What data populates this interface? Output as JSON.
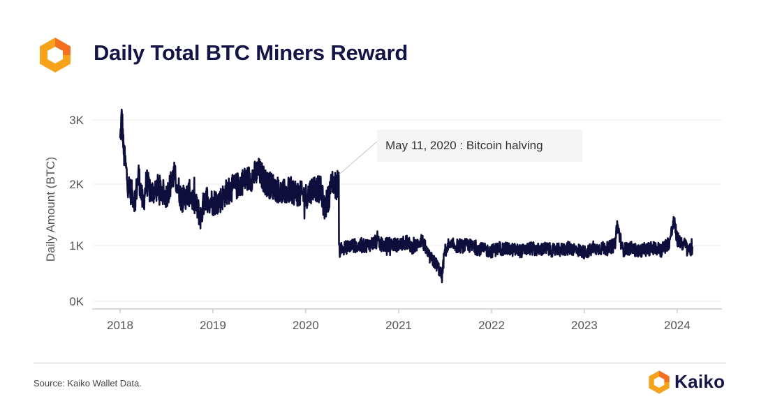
{
  "header": {
    "title": "Daily Total BTC Miners Reward",
    "logo_icon": "kaiko-logo-icon"
  },
  "colors": {
    "line": "#0e0e3c",
    "title": "#141446",
    "logo_primary": "#f7a21b",
    "logo_secondary": "#f36f21"
  },
  "chart_data": {
    "type": "line",
    "title": "Daily Total BTC Miners Reward",
    "xlabel": "",
    "ylabel": "Daily Amount (BTC)",
    "x_ticks": [
      "2018",
      "2019",
      "2020",
      "2021",
      "2022",
      "2023",
      "2024"
    ],
    "y_ticks": [
      "0K",
      "1K",
      "2K",
      "3K"
    ],
    "ylim": [
      0,
      3200
    ],
    "x_range": [
      "2018-01-01",
      "2024-03-01"
    ],
    "grid": true,
    "legend": "none",
    "series": [
      {
        "x": [
          "2018-01-01",
          "2018-01-08",
          "2018-01-15",
          "2018-01-22",
          "2018-02-01",
          "2018-02-15",
          "2018-03-01",
          "2018-03-15",
          "2018-04-01",
          "2018-04-15",
          "2018-05-01",
          "2018-06-01",
          "2018-07-01",
          "2018-08-01",
          "2018-09-01",
          "2018-10-01",
          "2018-11-01",
          "2018-11-15",
          "2018-12-01",
          "2019-01-01",
          "2019-02-01",
          "2019-03-01",
          "2019-04-01",
          "2019-05-01",
          "2019-06-01",
          "2019-07-01",
          "2019-08-01",
          "2019-09-01",
          "2019-10-01",
          "2019-11-01",
          "2019-12-01",
          "2020-01-01",
          "2020-02-01",
          "2020-03-01",
          "2020-03-15",
          "2020-04-01",
          "2020-04-15",
          "2020-05-01",
          "2020-05-10",
          "2020-05-11",
          "2020-05-13",
          "2020-05-20",
          "2020-06-01",
          "2020-07-01",
          "2020-08-01",
          "2020-09-01",
          "2020-10-01",
          "2020-11-01",
          "2020-12-01",
          "2021-01-01",
          "2021-02-01",
          "2021-03-01",
          "2021-04-01",
          "2021-04-20",
          "2021-05-01",
          "2021-06-01",
          "2021-06-20",
          "2021-07-01",
          "2021-07-15",
          "2021-08-01",
          "2021-09-01",
          "2021-10-01",
          "2021-11-01",
          "2021-12-01",
          "2022-01-01",
          "2022-02-01",
          "2022-03-01",
          "2022-04-01",
          "2022-05-01",
          "2022-06-01",
          "2022-07-01",
          "2022-08-01",
          "2022-09-01",
          "2022-10-01",
          "2022-11-01",
          "2022-12-01",
          "2023-01-01",
          "2023-02-01",
          "2023-03-01",
          "2023-04-01",
          "2023-05-01",
          "2023-05-10",
          "2023-06-01",
          "2023-07-01",
          "2023-08-01",
          "2023-09-01",
          "2023-10-01",
          "2023-11-01",
          "2023-12-01",
          "2023-12-20",
          "2024-01-01",
          "2024-02-01",
          "2024-03-01"
        ],
        "y": [
          2650,
          3100,
          2500,
          2300,
          2000,
          1850,
          1750,
          2150,
          1650,
          2050,
          1850,
          1950,
          1800,
          2150,
          1750,
          1850,
          1600,
          1450,
          1800,
          1700,
          1750,
          1900,
          1950,
          2050,
          2100,
          2200,
          2000,
          1950,
          1850,
          1900,
          1850,
          1800,
          1950,
          1900,
          1600,
          1800,
          2050,
          1950,
          2100,
          1000,
          900,
          950,
          950,
          1000,
          980,
          1000,
          1050,
          1000,
          1020,
          1000,
          1050,
          950,
          1100,
          900,
          800,
          650,
          450,
          900,
          950,
          1000,
          980,
          1000,
          950,
          920,
          900,
          950,
          930,
          920,
          900,
          950,
          920,
          940,
          910,
          920,
          950,
          930,
          880,
          920,
          950,
          940,
          1000,
          1350,
          920,
          950,
          900,
          930,
          950,
          930,
          1050,
          1400,
          1100,
          1000,
          900
        ],
        "envelope": 150
      }
    ],
    "annotations": [
      {
        "x": "2020-05-11",
        "y": 2150,
        "text": "May 11, 2020 : Bitcoin halving"
      }
    ]
  },
  "footer": {
    "source": "Source: Kaiko Wallet Data.",
    "brand": "Kaiko",
    "logo_icon": "kaiko-logo-icon"
  }
}
